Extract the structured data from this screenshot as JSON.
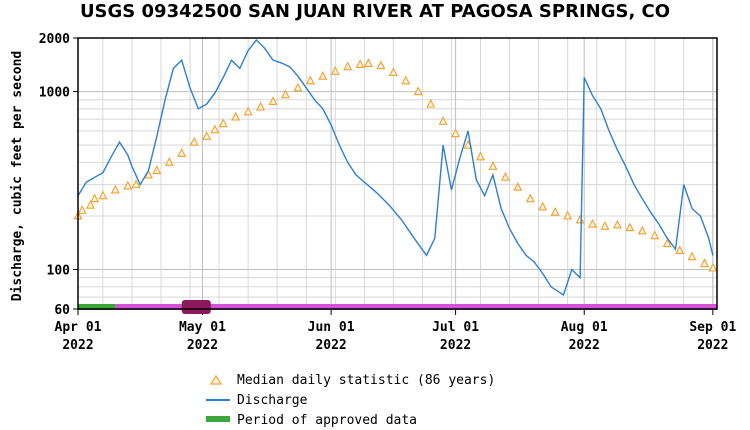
{
  "chart_data": {
    "type": "line",
    "title": "USGS 09342500 SAN JUAN RIVER AT PAGOSA SPRINGS, CO",
    "ylabel": "Discharge, cubic feet per second",
    "yscale": "log",
    "ylim": [
      60,
      2000
    ],
    "y_ticks": [
      "60",
      "100",
      "1000",
      "2000"
    ],
    "xlim": [
      "2022-04-01",
      "2022-09-02"
    ],
    "x_ticks": [
      {
        "date": "2022-04-01",
        "line1": "Apr 01",
        "line2": "2022"
      },
      {
        "date": "2022-05-01",
        "line1": "May 01",
        "line2": "2022"
      },
      {
        "date": "2022-06-01",
        "line1": "Jun 01",
        "line2": "2022"
      },
      {
        "date": "2022-07-01",
        "line1": "Jul 01",
        "line2": "2022"
      },
      {
        "date": "2022-08-01",
        "line1": "Aug 01",
        "line2": "2022"
      },
      {
        "date": "2022-09-01",
        "line1": "Sep 01",
        "line2": "2022"
      }
    ],
    "grid": true,
    "legend_position": "bottom",
    "legend": [
      {
        "label": "Median daily statistic (86 years)",
        "kind": "triangle",
        "color": "#f0a030"
      },
      {
        "label": "Discharge",
        "kind": "line",
        "color": "#2f7fd0"
      },
      {
        "label": "Period of approved data",
        "kind": "bar",
        "color": "#3ca53c"
      }
    ],
    "series": [
      {
        "name": "Median daily statistic (86 years)",
        "color": "#f0a030",
        "marker": "triangle",
        "points": [
          [
            "2022-04-01",
            200
          ],
          [
            "2022-04-02",
            215
          ],
          [
            "2022-04-04",
            230
          ],
          [
            "2022-04-05",
            250
          ],
          [
            "2022-04-07",
            260
          ],
          [
            "2022-04-10",
            280
          ],
          [
            "2022-04-13",
            295
          ],
          [
            "2022-04-15",
            300
          ],
          [
            "2022-04-18",
            340
          ],
          [
            "2022-04-20",
            360
          ],
          [
            "2022-04-23",
            400
          ],
          [
            "2022-04-26",
            450
          ],
          [
            "2022-04-29",
            520
          ],
          [
            "2022-05-02",
            560
          ],
          [
            "2022-05-04",
            610
          ],
          [
            "2022-05-06",
            660
          ],
          [
            "2022-05-09",
            720
          ],
          [
            "2022-05-12",
            770
          ],
          [
            "2022-05-15",
            820
          ],
          [
            "2022-05-18",
            880
          ],
          [
            "2022-05-21",
            960
          ],
          [
            "2022-05-24",
            1050
          ],
          [
            "2022-05-27",
            1150
          ],
          [
            "2022-05-30",
            1220
          ],
          [
            "2022-06-02",
            1300
          ],
          [
            "2022-06-05",
            1380
          ],
          [
            "2022-06-08",
            1420
          ],
          [
            "2022-06-10",
            1440
          ],
          [
            "2022-06-13",
            1400
          ],
          [
            "2022-06-16",
            1280
          ],
          [
            "2022-06-19",
            1150
          ],
          [
            "2022-06-22",
            1000
          ],
          [
            "2022-06-25",
            850
          ],
          [
            "2022-06-28",
            680
          ],
          [
            "2022-07-01",
            580
          ],
          [
            "2022-07-04",
            500
          ],
          [
            "2022-07-07",
            430
          ],
          [
            "2022-07-10",
            380
          ],
          [
            "2022-07-13",
            330
          ],
          [
            "2022-07-16",
            290
          ],
          [
            "2022-07-19",
            250
          ],
          [
            "2022-07-22",
            225
          ],
          [
            "2022-07-25",
            210
          ],
          [
            "2022-07-28",
            200
          ],
          [
            "2022-07-31",
            190
          ],
          [
            "2022-08-03",
            180
          ],
          [
            "2022-08-06",
            175
          ],
          [
            "2022-08-09",
            178
          ],
          [
            "2022-08-12",
            172
          ],
          [
            "2022-08-15",
            165
          ],
          [
            "2022-08-18",
            155
          ],
          [
            "2022-08-21",
            140
          ],
          [
            "2022-08-24",
            128
          ],
          [
            "2022-08-27",
            118
          ],
          [
            "2022-08-30",
            108
          ],
          [
            "2022-09-01",
            102
          ]
        ]
      },
      {
        "name": "Discharge",
        "color": "#2f7fd0",
        "marker": "none",
        "points": [
          [
            "2022-04-01",
            260
          ],
          [
            "2022-04-03",
            310
          ],
          [
            "2022-04-05",
            330
          ],
          [
            "2022-04-07",
            350
          ],
          [
            "2022-04-09",
            430
          ],
          [
            "2022-04-11",
            520
          ],
          [
            "2022-04-13",
            440
          ],
          [
            "2022-04-14",
            380
          ],
          [
            "2022-04-16",
            300
          ],
          [
            "2022-04-18",
            360
          ],
          [
            "2022-04-20",
            560
          ],
          [
            "2022-04-22",
            900
          ],
          [
            "2022-04-24",
            1350
          ],
          [
            "2022-04-26",
            1500
          ],
          [
            "2022-04-28",
            1050
          ],
          [
            "2022-04-30",
            800
          ],
          [
            "2022-05-02",
            850
          ],
          [
            "2022-05-04",
            980
          ],
          [
            "2022-05-06",
            1200
          ],
          [
            "2022-05-08",
            1500
          ],
          [
            "2022-05-10",
            1350
          ],
          [
            "2022-05-12",
            1700
          ],
          [
            "2022-05-14",
            1950
          ],
          [
            "2022-05-16",
            1750
          ],
          [
            "2022-05-18",
            1500
          ],
          [
            "2022-05-20",
            1450
          ],
          [
            "2022-05-22",
            1380
          ],
          [
            "2022-05-24",
            1220
          ],
          [
            "2022-05-26",
            1050
          ],
          [
            "2022-05-28",
            900
          ],
          [
            "2022-05-30",
            800
          ],
          [
            "2022-06-01",
            650
          ],
          [
            "2022-06-03",
            500
          ],
          [
            "2022-06-05",
            400
          ],
          [
            "2022-06-07",
            340
          ],
          [
            "2022-06-09",
            310
          ],
          [
            "2022-06-12",
            270
          ],
          [
            "2022-06-15",
            230
          ],
          [
            "2022-06-18",
            190
          ],
          [
            "2022-06-21",
            150
          ],
          [
            "2022-06-24",
            120
          ],
          [
            "2022-06-26",
            150
          ],
          [
            "2022-06-28",
            500
          ],
          [
            "2022-06-30",
            280
          ],
          [
            "2022-07-02",
            420
          ],
          [
            "2022-07-04",
            600
          ],
          [
            "2022-07-06",
            320
          ],
          [
            "2022-07-08",
            260
          ],
          [
            "2022-07-10",
            340
          ],
          [
            "2022-07-12",
            220
          ],
          [
            "2022-07-14",
            170
          ],
          [
            "2022-07-16",
            140
          ],
          [
            "2022-07-18",
            120
          ],
          [
            "2022-07-20",
            110
          ],
          [
            "2022-07-22",
            95
          ],
          [
            "2022-07-24",
            80
          ],
          [
            "2022-07-27",
            72
          ],
          [
            "2022-07-29",
            100
          ],
          [
            "2022-07-31",
            90
          ],
          [
            "2022-08-01",
            1200
          ],
          [
            "2022-08-03",
            950
          ],
          [
            "2022-08-05",
            800
          ],
          [
            "2022-08-07",
            600
          ],
          [
            "2022-08-09",
            470
          ],
          [
            "2022-08-11",
            380
          ],
          [
            "2022-08-13",
            300
          ],
          [
            "2022-08-15",
            250
          ],
          [
            "2022-08-17",
            210
          ],
          [
            "2022-08-19",
            180
          ],
          [
            "2022-08-21",
            150
          ],
          [
            "2022-08-23",
            130
          ],
          [
            "2022-08-25",
            300
          ],
          [
            "2022-08-27",
            220
          ],
          [
            "2022-08-29",
            200
          ],
          [
            "2022-08-31",
            150
          ],
          [
            "2022-09-01",
            120
          ]
        ]
      }
    ],
    "approval_bar": [
      {
        "start": "2022-04-01",
        "end": "2022-04-10",
        "color": "#3ca53c",
        "label": "Period of approved data"
      },
      {
        "start": "2022-04-10",
        "end": "2022-09-02",
        "color": "#d254d2"
      },
      {
        "start": "2022-04-26",
        "end": "2022-05-03",
        "color": "#8b1a5c"
      }
    ]
  }
}
